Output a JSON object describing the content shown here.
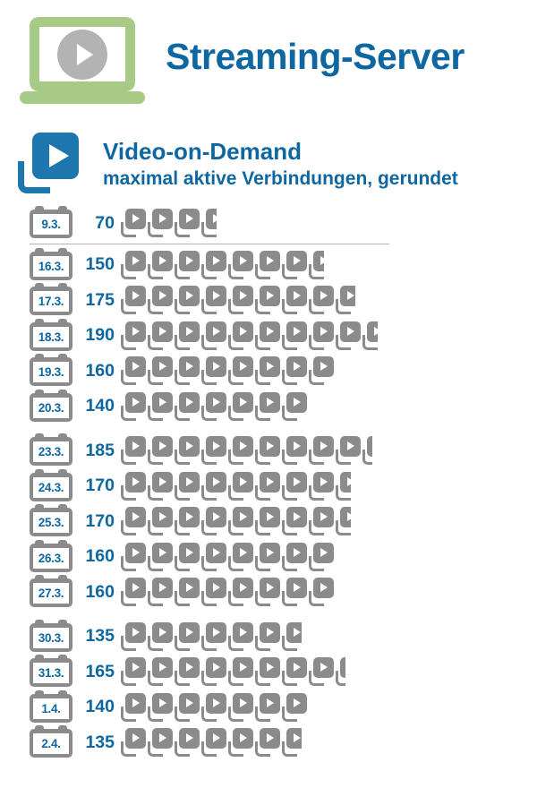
{
  "header": {
    "title": "Streaming-Server"
  },
  "section": {
    "title": "Video-on-Demand",
    "subtitle": "maximal aktive Verbindungen, gerundet"
  },
  "chart_data": {
    "type": "pictogram_bar",
    "title": "Video-on-Demand",
    "subtitle": "maximal aktive Verbindungen, gerundet",
    "icon": "play-video-stack",
    "unit_per_icon": 20,
    "categories": [
      "9.3.",
      "16.3.",
      "17.3.",
      "18.3.",
      "19.3.",
      "20.3.",
      "23.3.",
      "24.3.",
      "25.3.",
      "26.3.",
      "27.3.",
      "30.3.",
      "31.3.",
      "1.4.",
      "2.4."
    ],
    "values": [
      70,
      150,
      175,
      190,
      160,
      140,
      185,
      170,
      170,
      160,
      160,
      135,
      165,
      140,
      135
    ],
    "rows": [
      {
        "date": "9.3.",
        "value": 70,
        "group": 0
      },
      {
        "date": "16.3.",
        "value": 150,
        "group": 1
      },
      {
        "date": "17.3.",
        "value": 175,
        "group": 1
      },
      {
        "date": "18.3.",
        "value": 190,
        "group": 1
      },
      {
        "date": "19.3.",
        "value": 160,
        "group": 1
      },
      {
        "date": "20.3.",
        "value": 140,
        "group": 1
      },
      {
        "date": "23.3.",
        "value": 185,
        "group": 2
      },
      {
        "date": "24.3.",
        "value": 170,
        "group": 2
      },
      {
        "date": "25.3.",
        "value": 170,
        "group": 2
      },
      {
        "date": "26.3.",
        "value": 160,
        "group": 2
      },
      {
        "date": "27.3.",
        "value": 160,
        "group": 2
      },
      {
        "date": "30.3.",
        "value": 135,
        "group": 3
      },
      {
        "date": "31.3.",
        "value": 165,
        "group": 3
      },
      {
        "date": "1.4.",
        "value": 140,
        "group": 3
      },
      {
        "date": "2.4.",
        "value": 135,
        "group": 3
      }
    ]
  },
  "colors": {
    "blue": "#0e67a1",
    "icon_blue": "#1e76ae",
    "gray": "#8b8b8b",
    "green": "#a7cb87",
    "circle_gray": "#b3b3b3",
    "divider": "#b4b4b4"
  }
}
